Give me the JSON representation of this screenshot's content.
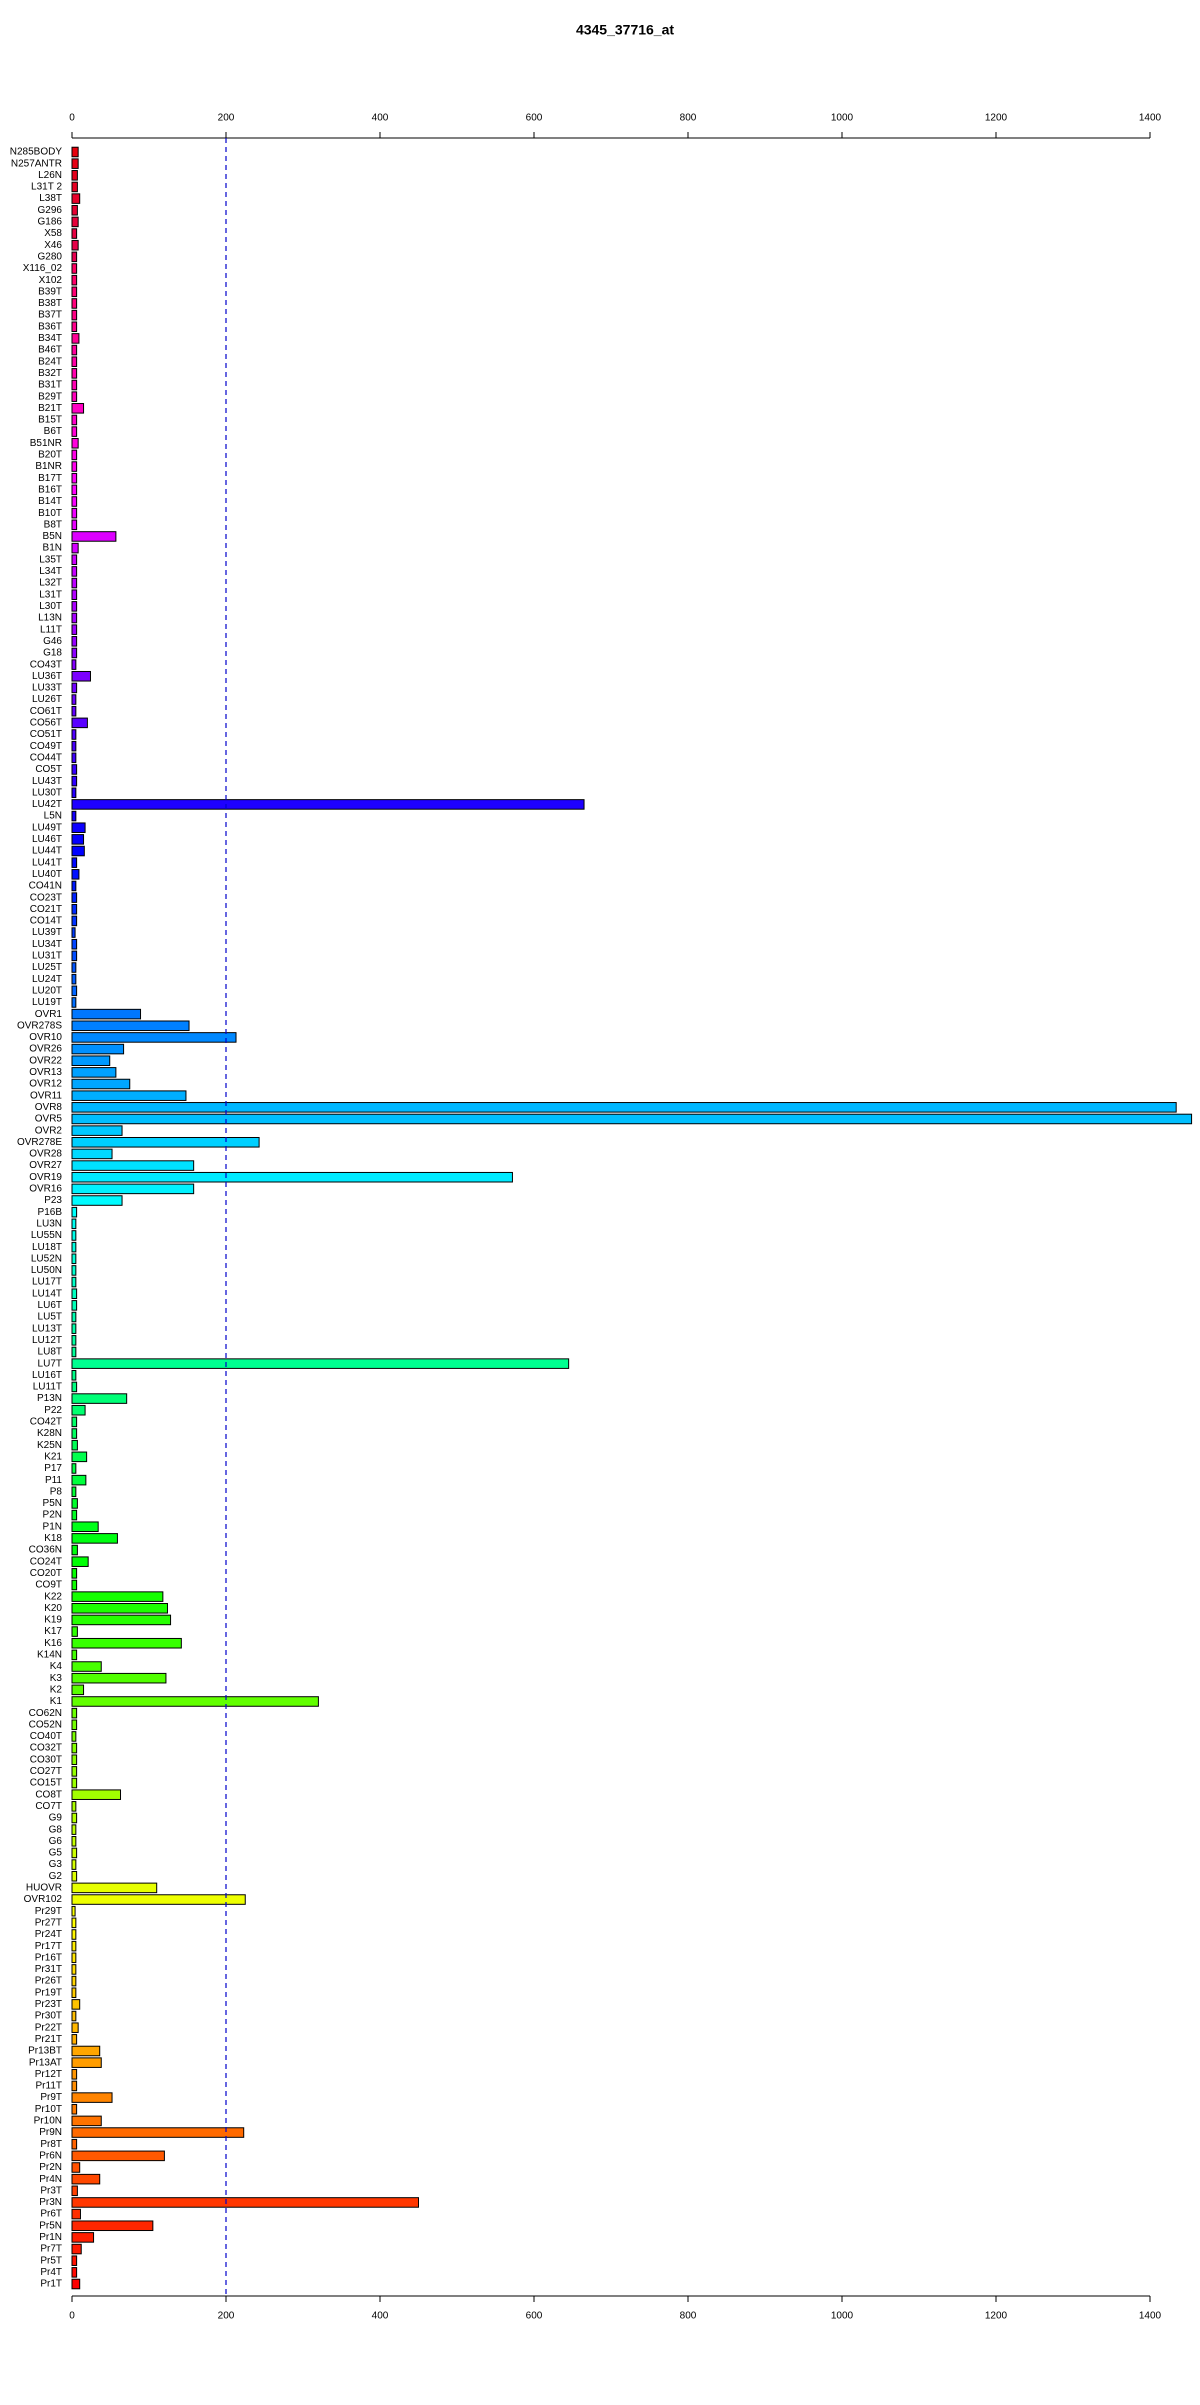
{
  "chart_data": {
    "type": "barh",
    "title": "4345_37716_at",
    "categories": [
      "N285BODY",
      "N257ANTR",
      "L26N",
      "L31T 2",
      "L38T",
      "G296",
      "G186",
      "X58",
      "X46",
      "G280",
      "X116_02",
      "X102",
      "B39T",
      "B38T",
      "B37T",
      "B36T",
      "B34T",
      "B46T",
      "B24T",
      "B32T",
      "B31T",
      "B29T",
      "B21T",
      "B15T",
      "B6T",
      "B51NR",
      "B20T",
      "B1NR",
      "B17T",
      "B16T",
      "B14T",
      "B10T",
      "B8T",
      "B5N",
      "B1N",
      "L35T",
      "L34T",
      "L32T",
      "L31T",
      "L30T",
      "L13N",
      "L11T",
      "G46",
      "G18",
      "CO43T",
      "LU36T",
      "LU33T",
      "LU26T",
      "CO61T",
      "CO56T",
      "CO51T",
      "CO49T",
      "CO44T",
      "CO5T",
      "LU43T",
      "LU30T",
      "LU42T",
      "L5N",
      "LU49T",
      "LU46T",
      "LU44T",
      "LU41T",
      "LU40T",
      "CO41N",
      "CO23T",
      "CO21T",
      "CO14T",
      "LU39T",
      "LU34T",
      "LU31T",
      "LU25T",
      "LU24T",
      "LU20T",
      "LU19T",
      "OVR1",
      "OVR278S",
      "OVR10",
      "OVR26",
      "OVR22",
      "OVR13",
      "OVR12",
      "OVR11",
      "OVR8",
      "OVR5",
      "OVR2",
      "OVR278E",
      "OVR28",
      "OVR27",
      "OVR19",
      "OVR16",
      "P23",
      "P16B",
      "LU3N",
      "LU55N",
      "LU18T",
      "LU52N",
      "LU50N",
      "LU17T",
      "LU14T",
      "LU6T",
      "LU5T",
      "LU13T",
      "LU12T",
      "LU8T",
      "LU7T",
      "LU16T",
      "LU11T",
      "P13N",
      "P22",
      "CO42T",
      "K28N",
      "K25N",
      "K21",
      "P17",
      "P11",
      "P8",
      "P5N",
      "P2N",
      "P1N",
      "K18",
      "CO36N",
      "CO24T",
      "CO20T",
      "CO9T",
      "K22",
      "K20",
      "K19",
      "K17",
      "K16",
      "K14N",
      "K4",
      "K3",
      "K2",
      "K1",
      "CO62N",
      "CO52N",
      "CO40T",
      "CO32T",
      "CO30T",
      "CO27T",
      "CO15T",
      "CO8T",
      "CO7T",
      "G9",
      "G8",
      "G6",
      "G5",
      "G3",
      "G2",
      "HUOVR",
      "OVR102",
      "Pr29T",
      "Pr27T",
      "Pr24T",
      "Pr17T",
      "Pr16T",
      "Pr31T",
      "Pr26T",
      "Pr19T",
      "Pr23T",
      "Pr30T",
      "Pr22T",
      "Pr21T",
      "Pr13BT",
      "Pr13AT",
      "Pr12T",
      "Pr11T",
      "Pr9T",
      "Pr10T",
      "Pr10N",
      "Pr9N",
      "Pr8T",
      "Pr6N",
      "Pr2N",
      "Pr4N",
      "Pr3T",
      "Pr3N",
      "Pr6T",
      "Pr5N",
      "Pr1N",
      "Pr7T",
      "Pr5T",
      "Pr4T",
      "Pr1T"
    ],
    "values": [
      8,
      8,
      7,
      7,
      10,
      7,
      8,
      6,
      8,
      6,
      6,
      6,
      6,
      6,
      6,
      6,
      9,
      6,
      6,
      6,
      6,
      6,
      15,
      6,
      6,
      8,
      6,
      6,
      6,
      6,
      6,
      6,
      6,
      57,
      8,
      6,
      6,
      6,
      6,
      6,
      6,
      6,
      6,
      6,
      5,
      24,
      6,
      5,
      5,
      20,
      5,
      5,
      5,
      6,
      6,
      5,
      665,
      5,
      17,
      15,
      16,
      6,
      9,
      5,
      6,
      6,
      6,
      4,
      6,
      6,
      5,
      5,
      6,
      5,
      89,
      152,
      213,
      67,
      49,
      57,
      75,
      148,
      1434,
      1454,
      65,
      243,
      52,
      158,
      572,
      158,
      65,
      6,
      5,
      5,
      5,
      5,
      5,
      5,
      6,
      6,
      5,
      5,
      5,
      5,
      645,
      5,
      6,
      71,
      17,
      6,
      6,
      7,
      19,
      5,
      18,
      5,
      7,
      6,
      34,
      59,
      7,
      21,
      6,
      6,
      118,
      124,
      128,
      7,
      142,
      6,
      38,
      122,
      15,
      320,
      6,
      6,
      5,
      6,
      6,
      6,
      6,
      63,
      5,
      6,
      5,
      5,
      6,
      5,
      6,
      110,
      225,
      4,
      5,
      5,
      5,
      5,
      5,
      5,
      5,
      10,
      5,
      8,
      6,
      36,
      38,
      6,
      6,
      52,
      6,
      38,
      223,
      6,
      120,
      10,
      36,
      7,
      450,
      11,
      105,
      28,
      12,
      6,
      6,
      10
    ],
    "colors": [
      "hsl(357,100%,45%)",
      "hsl(355,100%,45%)",
      "hsl(353,100%,45%)",
      "hsl(351,100%,45%)",
      "hsl(349,100%,45%)",
      "hsl(347,100%,45%)",
      "hsl(345,100%,45%)",
      "hsl(343,100%,45%)",
      "hsl(341,100%,45%)",
      "hsl(339,100%,45%)",
      "hsl(337,100%,50%)",
      "hsl(335,100%,50%)",
      "hsl(333,100%,50%)",
      "hsl(331,100%,50%)",
      "hsl(329,100%,50%)",
      "hsl(327,100%,50%)",
      "hsl(325,100%,50%)",
      "hsl(323,100%,50%)",
      "hsl(321,100%,50%)",
      "hsl(319,100%,50%)",
      "hsl(318,100%,50%)",
      "hsl(316,100%,50%)",
      "hsl(314,100%,50%)",
      "hsl(312,100%,50%)",
      "hsl(310,100%,50%)",
      "hsl(308,100%,50%)",
      "hsl(306,100%,50%)",
      "hsl(304,100%,50%)",
      "hsl(302,100%,50%)",
      "hsl(300,100%,50%)",
      "hsl(298,100%,50%)",
      "hsl(296,100%,50%)",
      "hsl(294,100%,50%)",
      "hsl(292,100%,50%)",
      "hsl(290,100%,50%)",
      "hsl(288,100%,50%)",
      "hsl(286,100%,50%)",
      "hsl(284,100%,50%)",
      "hsl(282,100%,50%)",
      "hsl(280,100%,50%)",
      "hsl(279,100%,50%)",
      "hsl(277,100%,50%)",
      "hsl(275,100%,50%)",
      "hsl(273,100%,50%)",
      "hsl(271,100%,50%)",
      "hsl(269,100%,50%)",
      "hsl(267,100%,50%)",
      "hsl(265,100%,50%)",
      "hsl(263,100%,50%)",
      "hsl(261,100%,50%)",
      "hsl(259,100%,50%)",
      "hsl(257,100%,50%)",
      "hsl(255,100%,50%)",
      "hsl(253,100%,50%)",
      "hsl(251,100%,50%)",
      "hsl(249,100%,50%)",
      "hsl(247,100%,50%)",
      "hsl(245,100%,50%)",
      "hsl(243,100%,50%)",
      "hsl(241,100%,50%)",
      "hsl(240,100%,50%)",
      "hsl(238,100%,50%)",
      "hsl(236,100%,50%)",
      "hsl(234,100%,50%)",
      "hsl(232,100%,50%)",
      "hsl(230,100%,50%)",
      "hsl(228,100%,50%)",
      "hsl(226,100%,50%)",
      "hsl(224,100%,50%)",
      "hsl(222,100%,50%)",
      "hsl(220,100%,50%)",
      "hsl(218,100%,50%)",
      "hsl(216,100%,50%)",
      "hsl(214,100%,50%)",
      "hsl(212,100%,50%)",
      "hsl(210,100%,50%)",
      "hsl(208,100%,50%)",
      "hsl(206,100%,50%)",
      "hsl(204,100%,50%)",
      "hsl(202,100%,50%)",
      "hsl(201,100%,50%)",
      "hsl(199,100%,50%)",
      "hsl(197,100%,50%)",
      "hsl(195,100%,50%)",
      "hsl(193,100%,50%)",
      "hsl(191,100%,50%)",
      "hsl(189,100%,50%)",
      "hsl(187,100%,50%)",
      "hsl(185,100%,50%)",
      "hsl(183,100%,50%)",
      "hsl(181,100%,50%)",
      "hsl(179,100%,50%)",
      "hsl(177,100%,50%)",
      "hsl(175,100%,50%)",
      "hsl(173,100%,50%)",
      "hsl(171,100%,50%)",
      "hsl(169,100%,50%)",
      "hsl(167,100%,50%)",
      "hsl(165,100%,50%)",
      "hsl(163,100%,50%)",
      "hsl(162,100%,50%)",
      "hsl(160,100%,50%)",
      "hsl(158,100%,50%)",
      "hsl(156,100%,50%)",
      "hsl(154,100%,50%)",
      "hsl(152,100%,50%)",
      "hsl(150,100%,50%)",
      "hsl(148,100%,50%)",
      "hsl(146,100%,50%)",
      "hsl(144,100%,50%)",
      "hsl(142,100%,50%)",
      "hsl(140,100%,50%)",
      "hsl(138,100%,50%)",
      "hsl(136,100%,50%)",
      "hsl(134,100%,50%)",
      "hsl(132,100%,50%)",
      "hsl(130,100%,50%)",
      "hsl(128,100%,50%)",
      "hsl(126,100%,50%)",
      "hsl(124,100%,50%)",
      "hsl(123,100%,50%)",
      "hsl(121,100%,50%)",
      "hsl(119,100%,50%)",
      "hsl(117,100%,50%)",
      "hsl(115,100%,50%)",
      "hsl(113,100%,50%)",
      "hsl(111,100%,50%)",
      "hsl(109,100%,50%)",
      "hsl(107,100%,50%)",
      "hsl(105,100%,50%)",
      "hsl(103,100%,50%)",
      "hsl(101,100%,50%)",
      "hsl(99,100%,50%)",
      "hsl(97,100%,50%)",
      "hsl(95,100%,50%)",
      "hsl(93,100%,50%)",
      "hsl(91,100%,50%)",
      "hsl(89,100%,50%)",
      "hsl(87,100%,50%)",
      "hsl(85,100%,50%)",
      "hsl(84,100%,50%)",
      "hsl(82,100%,50%)",
      "hsl(80,100%,50%)",
      "hsl(78,100%,50%)",
      "hsl(76,100%,50%)",
      "hsl(74,100%,50%)",
      "hsl(72,100%,50%)",
      "hsl(70,100%,50%)",
      "hsl(68,100%,50%)",
      "hsl(66,100%,50%)",
      "hsl(64,100%,50%)",
      "hsl(62,100%,50%)",
      "hsl(60,100%,50%)",
      "hsl(58,100%,50%)",
      "hsl(56,100%,50%)",
      "hsl(54,100%,50%)",
      "hsl(52,100%,50%)",
      "hsl(50,100%,50%)",
      "hsl(48,100%,50%)",
      "hsl(46,100%,50%)",
      "hsl(45,100%,50%)",
      "hsl(43,100%,50%)",
      "hsl(41,100%,50%)",
      "hsl(39,100%,50%)",
      "hsl(37,100%,50%)",
      "hsl(35,100%,50%)",
      "hsl(33,100%,50%)",
      "hsl(31,100%,50%)",
      "hsl(29,100%,50%)",
      "hsl(27,100%,50%)",
      "hsl(25,100%,50%)",
      "hsl(23,100%,50%)",
      "hsl(21,100%,50%)",
      "hsl(19,100%,50%)",
      "hsl(17,100%,50%)",
      "hsl(15,100%,50%)",
      "hsl(13,100%,50%)",
      "hsl(11,100%,50%)",
      "hsl(9,100%,50%)",
      "hsl(7,100%,50%)",
      "hsl(6,100%,50%)",
      "hsl(4,100%,50%)",
      "hsl(2,100%,50%)",
      "hsl(0,100%,50%)"
    ],
    "xlim": [
      0,
      1400
    ],
    "xticks": [
      0,
      200,
      400,
      600,
      800,
      1000,
      1200,
      1400
    ],
    "vline": 200,
    "vline_color": "#0000cc"
  }
}
